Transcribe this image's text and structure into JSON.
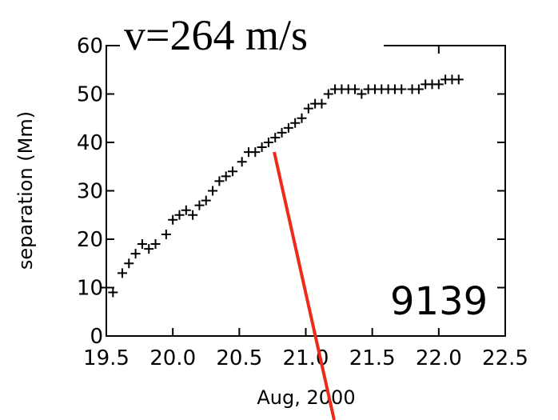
{
  "chart_data": {
    "type": "scatter",
    "title": "v=264 m/s",
    "annotation": "9139",
    "x_label": "Aug, 2000",
    "y_label": "separation (Mm)",
    "xlim": [
      19.5,
      22.5
    ],
    "ylim": [
      0,
      60
    ],
    "xticks": [
      19.5,
      {
        "value": 20,
        "label": "20.0"
      },
      20.5,
      {
        "value": 21,
        "label": "21.0"
      },
      21.5,
      {
        "value": 22,
        "label": "22.0"
      },
      22.5
    ],
    "yticks": [
      0,
      10,
      20,
      30,
      40,
      50,
      60
    ],
    "color": "#000000",
    "x": [
      19.5,
      19.55,
      19.62,
      19.67,
      19.72,
      19.77,
      19.82,
      19.87,
      19.95,
      20.0,
      20.05,
      20.1,
      20.15,
      20.2,
      20.25,
      20.3,
      20.35,
      20.4,
      20.45,
      20.52,
      20.57,
      20.62,
      20.67,
      20.72,
      20.77,
      20.82,
      20.87,
      20.92,
      20.97,
      21.02,
      21.07,
      21.12,
      21.17,
      21.22,
      21.27,
      21.32,
      21.37,
      21.42,
      21.47,
      21.52,
      21.57,
      21.62,
      21.67,
      21.72,
      21.8,
      21.85,
      21.9,
      21.95,
      22.0,
      22.05,
      22.1,
      22.15
    ],
    "values": [
      10,
      9,
      13,
      15,
      17,
      19,
      18,
      19,
      21,
      24,
      25,
      26,
      25,
      27,
      28,
      30,
      32,
      33,
      34,
      36,
      38,
      38,
      39,
      40,
      41,
      42,
      43,
      44,
      45,
      47,
      48,
      48,
      50,
      51,
      51,
      51,
      51,
      50,
      51,
      51,
      51,
      51,
      51,
      51,
      51,
      51,
      52,
      52,
      52,
      53,
      53,
      53
    ]
  }
}
